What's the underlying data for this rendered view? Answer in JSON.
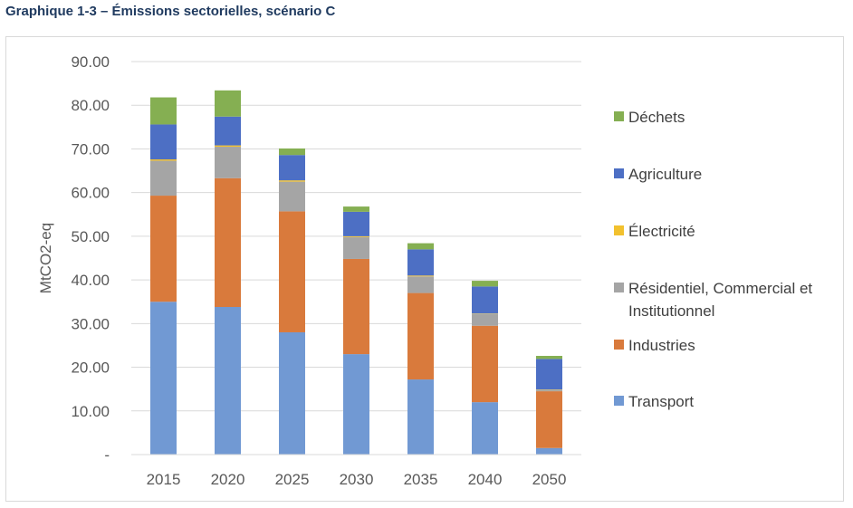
{
  "title": "Graphique 1-3 – Émissions sectorielles, scénario C",
  "chart_data": {
    "type": "bar",
    "stacked": true,
    "categories": [
      "2015",
      "2020",
      "2025",
      "2030",
      "2035",
      "2040",
      "2050"
    ],
    "ylabel": "MtCO2-eq",
    "xlabel": "",
    "ylim": [
      0,
      90
    ],
    "y_ticks": [
      "-",
      "10.00",
      "20.00",
      "30.00",
      "40.00",
      "50.00",
      "60.00",
      "70.00",
      "80.00",
      "90.00"
    ],
    "grid": true,
    "legend_position": "right",
    "series": [
      {
        "name": "Transport",
        "color": "#7199d3",
        "values": [
          35.0,
          33.8,
          28.0,
          23.0,
          17.2,
          12.0,
          1.5
        ]
      },
      {
        "name": "Industries",
        "color": "#d97a3c",
        "values": [
          24.3,
          29.5,
          27.7,
          21.8,
          19.8,
          17.5,
          13.0
        ]
      },
      {
        "name": "Résidentiel, Commercial et Institutionnel",
        "color": "#a5a5a5",
        "values": [
          8.0,
          7.2,
          6.8,
          5.0,
          3.8,
          2.7,
          0.3
        ]
      },
      {
        "name": "Électricité",
        "color": "#f2c12e",
        "values": [
          0.3,
          0.3,
          0.3,
          0.2,
          0.2,
          0.1,
          0.1
        ]
      },
      {
        "name": "Agriculture",
        "color": "#4d6fc4",
        "values": [
          8.0,
          6.6,
          5.8,
          5.6,
          6.0,
          6.2,
          7.0
        ]
      },
      {
        "name": "Déchets",
        "color": "#85af52",
        "values": [
          6.2,
          6.0,
          1.5,
          1.2,
          1.4,
          1.3,
          0.7
        ]
      }
    ],
    "legend_order": [
      "Déchets",
      "Agriculture",
      "Électricité",
      "Résidentiel, Commercial et Institutionnel",
      "Industries",
      "Transport"
    ],
    "legend_lines": {
      "Résidentiel, Commercial et Institutionnel": [
        "Résidentiel, Commercial et",
        "Institutionnel"
      ]
    }
  }
}
